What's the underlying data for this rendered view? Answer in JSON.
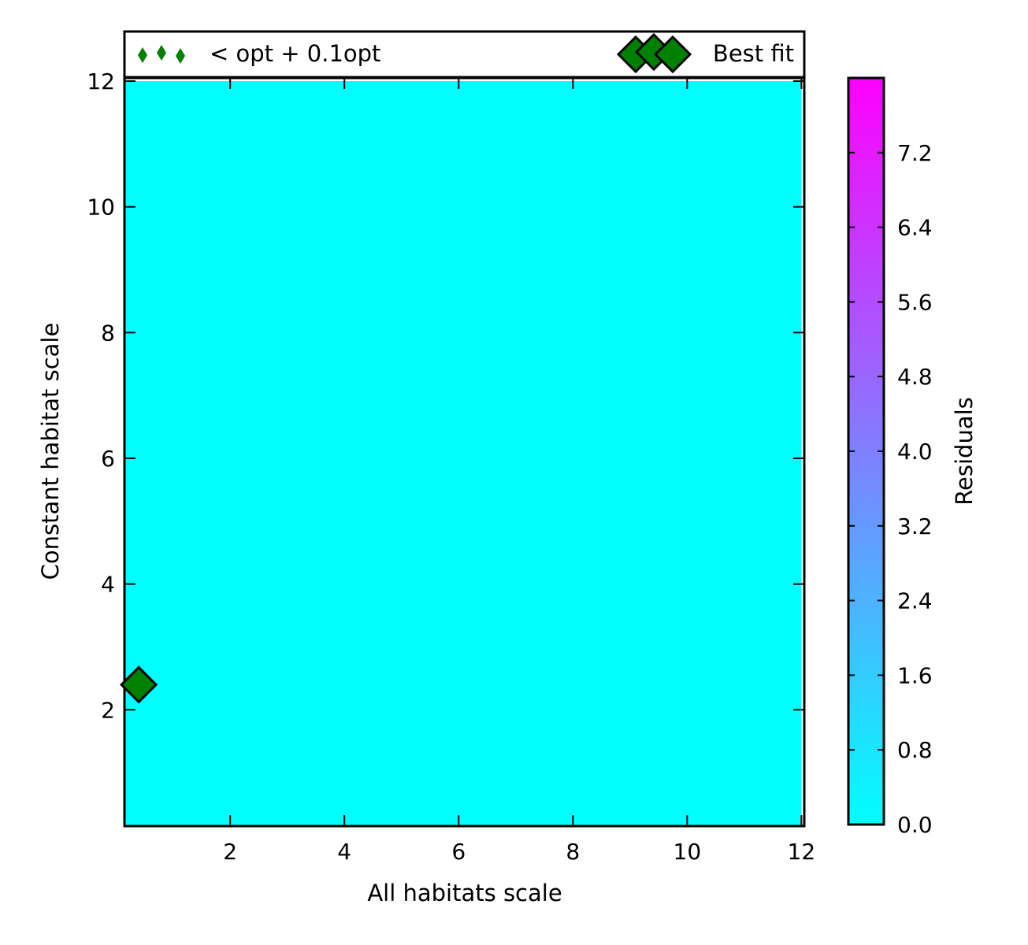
{
  "chart_data": {
    "type": "heatmap",
    "xlabel": "All habitats scale",
    "ylabel": "Constant habitat scale",
    "xlim": [
      0.15,
      12.05
    ],
    "ylim": [
      0.15,
      12.05
    ],
    "xticks": [
      "2",
      "4",
      "6",
      "8",
      "10",
      "12"
    ],
    "yticks": [
      "2",
      "4",
      "6",
      "8",
      "10",
      "12"
    ],
    "heatmap": {
      "x_range": [
        0.15,
        12.0
      ],
      "y_range": [
        0.15,
        12.0
      ],
      "dominant_value": 0.0,
      "colormap": "cool",
      "color_min": "#00ffff",
      "color_max": "#ff00ff"
    },
    "colorbar": {
      "label": "Residuals",
      "min": 0.0,
      "max": 8.0,
      "ticks": [
        "0.0",
        "0.8",
        "1.6",
        "2.4",
        "3.2",
        "4.0",
        "4.8",
        "5.6",
        "6.4",
        "7.2"
      ]
    },
    "series": [
      {
        "name": "Best fit",
        "marker": "diamond",
        "color": "#008000",
        "points": [
          {
            "x": 0.4,
            "y": 2.4
          }
        ]
      },
      {
        "name": "< opt + 0.1opt",
        "marker": "thin-diamond",
        "color": "#008000",
        "points": []
      }
    ],
    "legend": {
      "placement": "top-outside",
      "entries": [
        "< opt + 0.1opt",
        "Best fit"
      ]
    }
  }
}
